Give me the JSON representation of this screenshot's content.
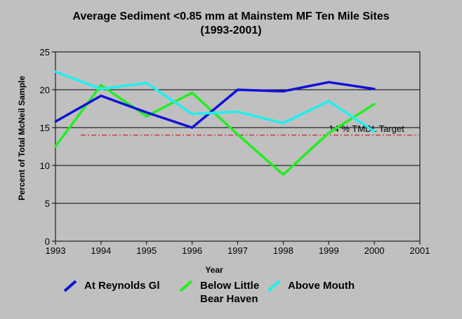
{
  "chart_data": {
    "type": "line",
    "title_line1": "Average Sediment <0.85 mm at Mainstem MF Ten Mile Sites",
    "title_line2": "(1993-2001)",
    "xlabel": "Year",
    "ylabel": "Percent of Total McNeil Sample",
    "xlim": [
      1993,
      2001
    ],
    "ylim": [
      0,
      25
    ],
    "x_ticks": [
      "1993",
      "1994",
      "1995",
      "1996",
      "1997",
      "1998",
      "1999",
      "2000",
      "2001"
    ],
    "y_ticks": [
      "0",
      "5",
      "10",
      "15",
      "20",
      "25"
    ],
    "grid": "horizontal-only",
    "series": [
      {
        "name": "At Reynolds Gl",
        "color": "#1010d8",
        "x": [
          1993,
          1994,
          1995,
          1996,
          1997,
          1998,
          1999,
          2000
        ],
        "y": [
          15.8,
          19.2,
          17.0,
          15.0,
          20.0,
          19.8,
          21.0,
          20.1
        ]
      },
      {
        "name": "Below Little Bear Haven",
        "color": "#22ee22",
        "x": [
          1993,
          1994,
          1995,
          1996,
          1997,
          1998,
          1999,
          2000
        ],
        "y": [
          12.5,
          20.6,
          16.5,
          19.6,
          14.1,
          8.8,
          14.3,
          18.1
        ]
      },
      {
        "name": "Above Mouth",
        "color": "#22eeee",
        "x": [
          1993,
          1994,
          1995,
          1996,
          1997,
          1998,
          1999,
          2000
        ],
        "y": [
          22.4,
          20.1,
          20.9,
          16.8,
          17.1,
          15.6,
          18.5,
          14.5
        ]
      }
    ],
    "target_line": {
      "value": 14,
      "label": "14 % TMDL Target",
      "color": "#cc0000"
    },
    "legend_placement": "bottom",
    "legend_labels": [
      "At Reynolds Gl",
      "Below Little\nBear Haven",
      "Above Mouth"
    ]
  }
}
